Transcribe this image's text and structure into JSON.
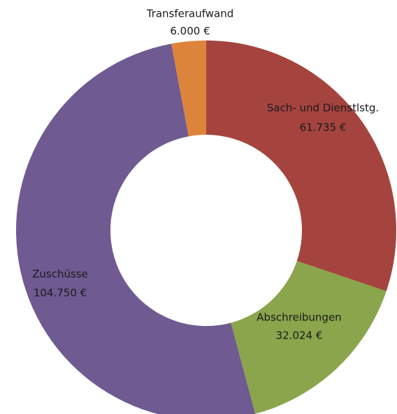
{
  "chart_data": {
    "type": "donut",
    "categories": [
      "Sach- und Dienstlstg.",
      "Abschreibungen",
      "Zuschüsse",
      "Transferaufwand"
    ],
    "values": [
      61735,
      32024,
      104750,
      6000
    ],
    "value_labels": [
      "61.735 €",
      "32.024 €",
      "104.750 €",
      "6.000 €"
    ],
    "colors": [
      "#a5443f",
      "#8aa54c",
      "#6f5a91",
      "#dd843b"
    ]
  }
}
